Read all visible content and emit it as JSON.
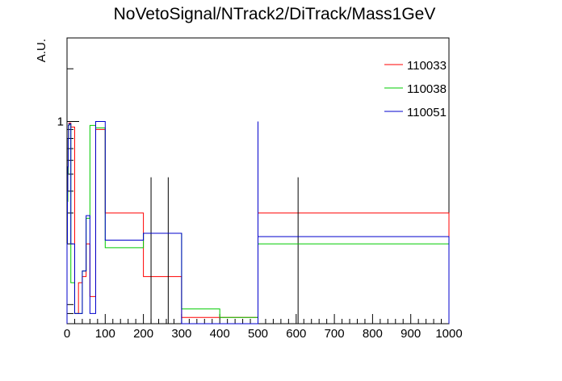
{
  "chart_data": {
    "type": "line",
    "title": "NoVetoSignal/NTrack2/DiTrack/Mass1GeV",
    "xlabel": "",
    "ylabel": "A.U.",
    "xlim": [
      0,
      1000
    ],
    "ylim": [
      0.07,
      3
    ],
    "y_scale": "log",
    "x_tick_labels": [
      "0",
      "100",
      "200",
      "300",
      "400",
      "500",
      "600",
      "700",
      "800",
      "900",
      "1000"
    ],
    "y_tick_labels": [
      {
        "value": 1,
        "label": "1"
      }
    ],
    "legend_position": "top-right",
    "grid": false,
    "series": [
      {
        "name": "110033",
        "color": "#ff0000",
        "bins": [
          {
            "x0": 0,
            "x1": 1,
            "y": 0.2
          },
          {
            "x0": 1,
            "x1": 2,
            "y": 0.35
          },
          {
            "x0": 2,
            "x1": 3,
            "y": 0.5
          },
          {
            "x0": 3,
            "x1": 4,
            "y": 0.8
          },
          {
            "x0": 4,
            "x1": 5,
            "y": 0.95
          },
          {
            "x0": 5,
            "x1": 10,
            "y": 0.98
          },
          {
            "x0": 10,
            "x1": 20,
            "y": 0.93
          },
          {
            "x0": 20,
            "x1": 30,
            "y": 0.08
          },
          {
            "x0": 30,
            "x1": 40,
            "y": 0.12
          },
          {
            "x0": 40,
            "x1": 50,
            "y": 0.13
          },
          {
            "x0": 50,
            "x1": 60,
            "y": 0.2
          },
          {
            "x0": 60,
            "x1": 75,
            "y": 0.1
          },
          {
            "x0": 75,
            "x1": 100,
            "y": 0.9
          },
          {
            "x0": 100,
            "x1": 200,
            "y": 0.3
          },
          {
            "x0": 200,
            "x1": 300,
            "y": 0.13
          },
          {
            "x0": 300,
            "x1": 400,
            "y": 0.076
          },
          {
            "x0": 400,
            "x1": 500,
            "y": 0.076
          },
          {
            "x0": 500,
            "x1": 1000,
            "y": 0.3
          }
        ],
        "error_bars": [
          {
            "x": 220,
            "low": 0.07,
            "high": 0.48
          },
          {
            "x": 265,
            "low": 0.07,
            "high": 0.48
          },
          {
            "x": 605,
            "low": 0.07,
            "high": 0.48
          }
        ]
      },
      {
        "name": "110038",
        "color": "#00cc00",
        "bins": [
          {
            "x0": 0,
            "x1": 1,
            "y": 0.2
          },
          {
            "x0": 1,
            "x1": 2,
            "y": 0.35
          },
          {
            "x0": 2,
            "x1": 3,
            "y": 0.5
          },
          {
            "x0": 3,
            "x1": 4,
            "y": 0.8
          },
          {
            "x0": 4,
            "x1": 5,
            "y": 0.95
          },
          {
            "x0": 5,
            "x1": 10,
            "y": 0.96
          },
          {
            "x0": 10,
            "x1": 20,
            "y": 0.12
          },
          {
            "x0": 20,
            "x1": 40,
            "y": 0.08
          },
          {
            "x0": 40,
            "x1": 50,
            "y": 0.14
          },
          {
            "x0": 50,
            "x1": 60,
            "y": 0.28
          },
          {
            "x0": 60,
            "x1": 75,
            "y": 0.95
          },
          {
            "x0": 75,
            "x1": 100,
            "y": 0.92
          },
          {
            "x0": 100,
            "x1": 200,
            "y": 0.19
          },
          {
            "x0": 200,
            "x1": 300,
            "y": 0.23
          },
          {
            "x0": 300,
            "x1": 400,
            "y": 0.085
          },
          {
            "x0": 400,
            "x1": 500,
            "y": 0.076
          },
          {
            "x0": 500,
            "x1": 1000,
            "y": 0.2
          }
        ]
      },
      {
        "name": "110051",
        "color": "#0000cc",
        "bins": [
          {
            "x0": 0,
            "x1": 1,
            "y": 0.2
          },
          {
            "x0": 1,
            "x1": 2,
            "y": 0.4
          },
          {
            "x0": 2,
            "x1": 3,
            "y": 0.55
          },
          {
            "x0": 3,
            "x1": 4,
            "y": 0.8
          },
          {
            "x0": 4,
            "x1": 5,
            "y": 0.95
          },
          {
            "x0": 5,
            "x1": 10,
            "y": 0.97
          },
          {
            "x0": 10,
            "x1": 20,
            "y": 0.2
          },
          {
            "x0": 20,
            "x1": 40,
            "y": 0.08
          },
          {
            "x0": 40,
            "x1": 50,
            "y": 0.14
          },
          {
            "x0": 50,
            "x1": 60,
            "y": 0.29
          },
          {
            "x0": 60,
            "x1": 75,
            "y": 0.08
          },
          {
            "x0": 75,
            "x1": 100,
            "y": 1.0
          },
          {
            "x0": 100,
            "x1": 200,
            "y": 0.21
          },
          {
            "x0": 200,
            "x1": 300,
            "y": 0.23
          },
          {
            "x0": 300,
            "x1": 500,
            "y": 0.07
          },
          {
            "x0": 500,
            "x1": 1000,
            "y": 0.22
          }
        ]
      }
    ],
    "extra_lines": [
      {
        "x": 500,
        "from": 0.07,
        "to": 1.0,
        "color": "#0000cc"
      }
    ]
  }
}
